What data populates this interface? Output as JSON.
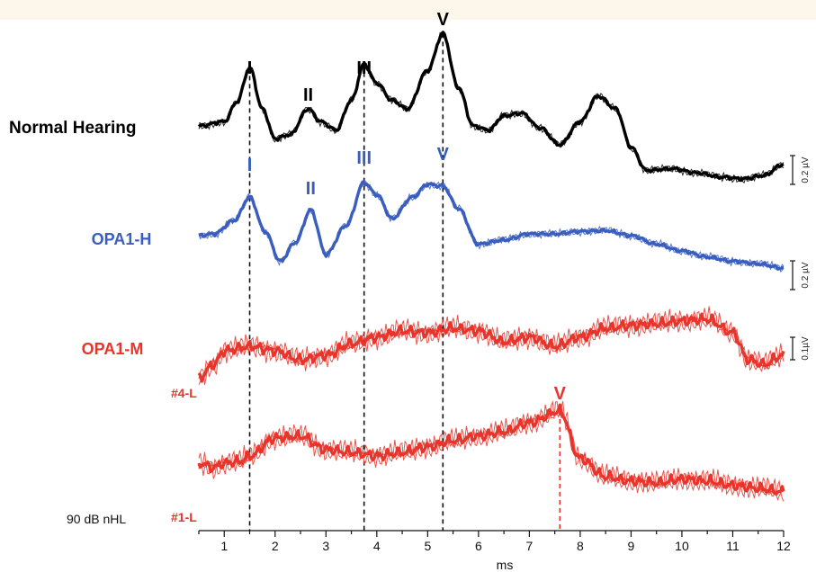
{
  "chart_data": {
    "type": "line",
    "xlabel": "ms",
    "xlim": [
      0.5,
      12
    ],
    "xticks": [
      1,
      2,
      3,
      4,
      5,
      6,
      7,
      8,
      9,
      10,
      11,
      12
    ],
    "stimulus_label": "90 dB nHL",
    "scale_bars": [
      "0.2 µV",
      "0.2 µV",
      "0.1µV"
    ],
    "series": [
      {
        "name": "Normal Hearing",
        "color": "#000000",
        "x": [
          0.5,
          1.0,
          1.25,
          1.5,
          1.75,
          2.0,
          2.3,
          2.65,
          2.9,
          3.2,
          3.5,
          3.75,
          4.0,
          4.3,
          4.6,
          5.0,
          5.3,
          5.6,
          5.9,
          6.2,
          6.5,
          6.85,
          7.2,
          7.6,
          8.0,
          8.35,
          8.7,
          9.0,
          9.3,
          9.8,
          10.3,
          10.8,
          11.2,
          11.6,
          12.0
        ],
        "y": [
          0.0,
          0.05,
          0.28,
          0.68,
          0.2,
          -0.15,
          -0.1,
          0.2,
          0.05,
          -0.05,
          0.3,
          0.72,
          0.5,
          0.3,
          0.2,
          0.65,
          1.08,
          0.45,
          0.0,
          -0.05,
          0.12,
          0.15,
          -0.02,
          -0.22,
          0.05,
          0.35,
          0.2,
          -0.25,
          -0.52,
          -0.5,
          -0.55,
          -0.6,
          -0.62,
          -0.58,
          -0.45
        ],
        "peaks": [
          {
            "label": "I",
            "x": 1.5
          },
          {
            "label": "II",
            "x": 2.65
          },
          {
            "label": "III",
            "x": 3.75
          },
          {
            "label": "V",
            "x": 5.3
          }
        ]
      },
      {
        "name": "OPA1-H",
        "color": "#3a5ebf",
        "x": [
          0.5,
          0.8,
          1.2,
          1.5,
          1.8,
          2.1,
          2.4,
          2.7,
          3.0,
          3.4,
          3.75,
          4.0,
          4.3,
          4.7,
          5.0,
          5.3,
          5.6,
          6.0,
          6.5,
          7.0,
          7.5,
          8.0,
          8.5,
          9.0,
          9.5,
          10.0,
          10.5,
          11.0,
          11.5,
          12.0
        ],
        "y": [
          0.0,
          0.02,
          0.18,
          0.45,
          0.05,
          -0.3,
          -0.08,
          0.3,
          -0.22,
          0.12,
          0.62,
          0.48,
          0.2,
          0.45,
          0.6,
          0.58,
          0.32,
          -0.1,
          -0.05,
          0.02,
          0.02,
          0.05,
          0.06,
          0.0,
          -0.1,
          -0.18,
          -0.25,
          -0.3,
          -0.33,
          -0.38
        ],
        "peaks": [
          {
            "label": "I",
            "x": 1.5
          },
          {
            "label": "II",
            "x": 2.7
          },
          {
            "label": "III",
            "x": 3.75
          },
          {
            "label": "V",
            "x": 5.3
          }
        ]
      },
      {
        "name": "OPA1-M",
        "sublabel": "#4-L",
        "color": "#e8342a",
        "x": [
          0.5,
          0.8,
          1.0,
          1.5,
          2.0,
          2.5,
          3.0,
          3.5,
          4.0,
          4.5,
          5.0,
          5.5,
          6.0,
          6.5,
          7.0,
          7.5,
          8.0,
          8.5,
          9.0,
          9.5,
          10.0,
          10.5,
          11.0,
          11.3,
          11.6,
          12.0
        ],
        "y": [
          -0.3,
          -0.15,
          0.0,
          0.05,
          0.0,
          -0.1,
          -0.05,
          0.08,
          0.15,
          0.22,
          0.2,
          0.25,
          0.22,
          0.1,
          0.15,
          0.05,
          0.15,
          0.25,
          0.28,
          0.3,
          0.33,
          0.35,
          0.2,
          -0.1,
          -0.15,
          -0.05
        ]
      },
      {
        "name": "#1-L",
        "color": "#e8342a",
        "x": [
          0.5,
          0.8,
          1.0,
          1.3,
          1.5,
          2.0,
          2.5,
          3.0,
          3.5,
          4.0,
          4.5,
          5.0,
          5.5,
          6.0,
          6.5,
          7.0,
          7.6,
          8.0,
          8.5,
          9.0,
          9.5,
          10.0,
          10.5,
          11.0,
          11.5,
          12.0
        ],
        "y": [
          0.0,
          -0.05,
          0.0,
          0.02,
          0.08,
          0.28,
          0.3,
          0.15,
          0.12,
          0.08,
          0.12,
          0.18,
          0.25,
          0.3,
          0.35,
          0.45,
          0.58,
          0.05,
          -0.15,
          -0.2,
          -0.22,
          -0.18,
          -0.2,
          -0.25,
          -0.28,
          -0.32
        ],
        "peaks": [
          {
            "label": "V",
            "x": 7.6
          }
        ]
      }
    ]
  }
}
